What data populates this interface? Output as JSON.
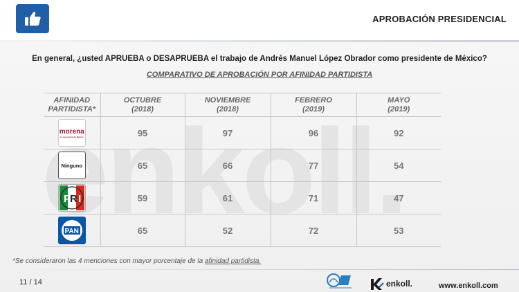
{
  "header": {
    "title": "APROBACIÓN PRESIDENCIAL",
    "icon": "thumbs-up-icon",
    "accent_color": "#1f5fa8"
  },
  "question": "En general, ¿usted APRUEBA o DESAPRUEBA el trabajo de Andrés Manuel López Obrador como presidente de México?",
  "subtitle": "COMPARATIVO DE APROBACIÓN POR AFINIDAD PARTIDISTA",
  "watermark": "enkoll.",
  "table": {
    "headers": [
      {
        "line1": "AFINIDAD",
        "line2": "PARTIDISTA*"
      },
      {
        "line1": "OCTUBRE",
        "line2": "(2018)"
      },
      {
        "line1": "NOVIEMBRE",
        "line2": "(2018)"
      },
      {
        "line1": "FEBRERO",
        "line2": "(2019)"
      },
      {
        "line1": "MAYO",
        "line2": "(2019)"
      }
    ],
    "rows": [
      {
        "party_logo": "morena-logo",
        "logo_text": "morena",
        "logo_tagline": "La esperanza de México",
        "values": [
          "95",
          "97",
          "96",
          "92"
        ]
      },
      {
        "party_logo": "ninguno-label",
        "logo_text": "Ninguno",
        "values": [
          "65",
          "66",
          "77",
          "54"
        ]
      },
      {
        "party_logo": "pri-logo",
        "logo_text": "PRI",
        "values": [
          "59",
          "61",
          "71",
          "47"
        ]
      },
      {
        "party_logo": "pan-logo",
        "logo_text": "PAN",
        "values": [
          "65",
          "52",
          "72",
          "53"
        ]
      }
    ]
  },
  "footnote": {
    "text": "*Se consideraron las 4 menciones con mayor porcentaje de la ",
    "underlined": "afinidad partidista."
  },
  "footer": {
    "page": "11 / 14",
    "brand": "enkoll.",
    "website": "www.enkoll.com"
  }
}
